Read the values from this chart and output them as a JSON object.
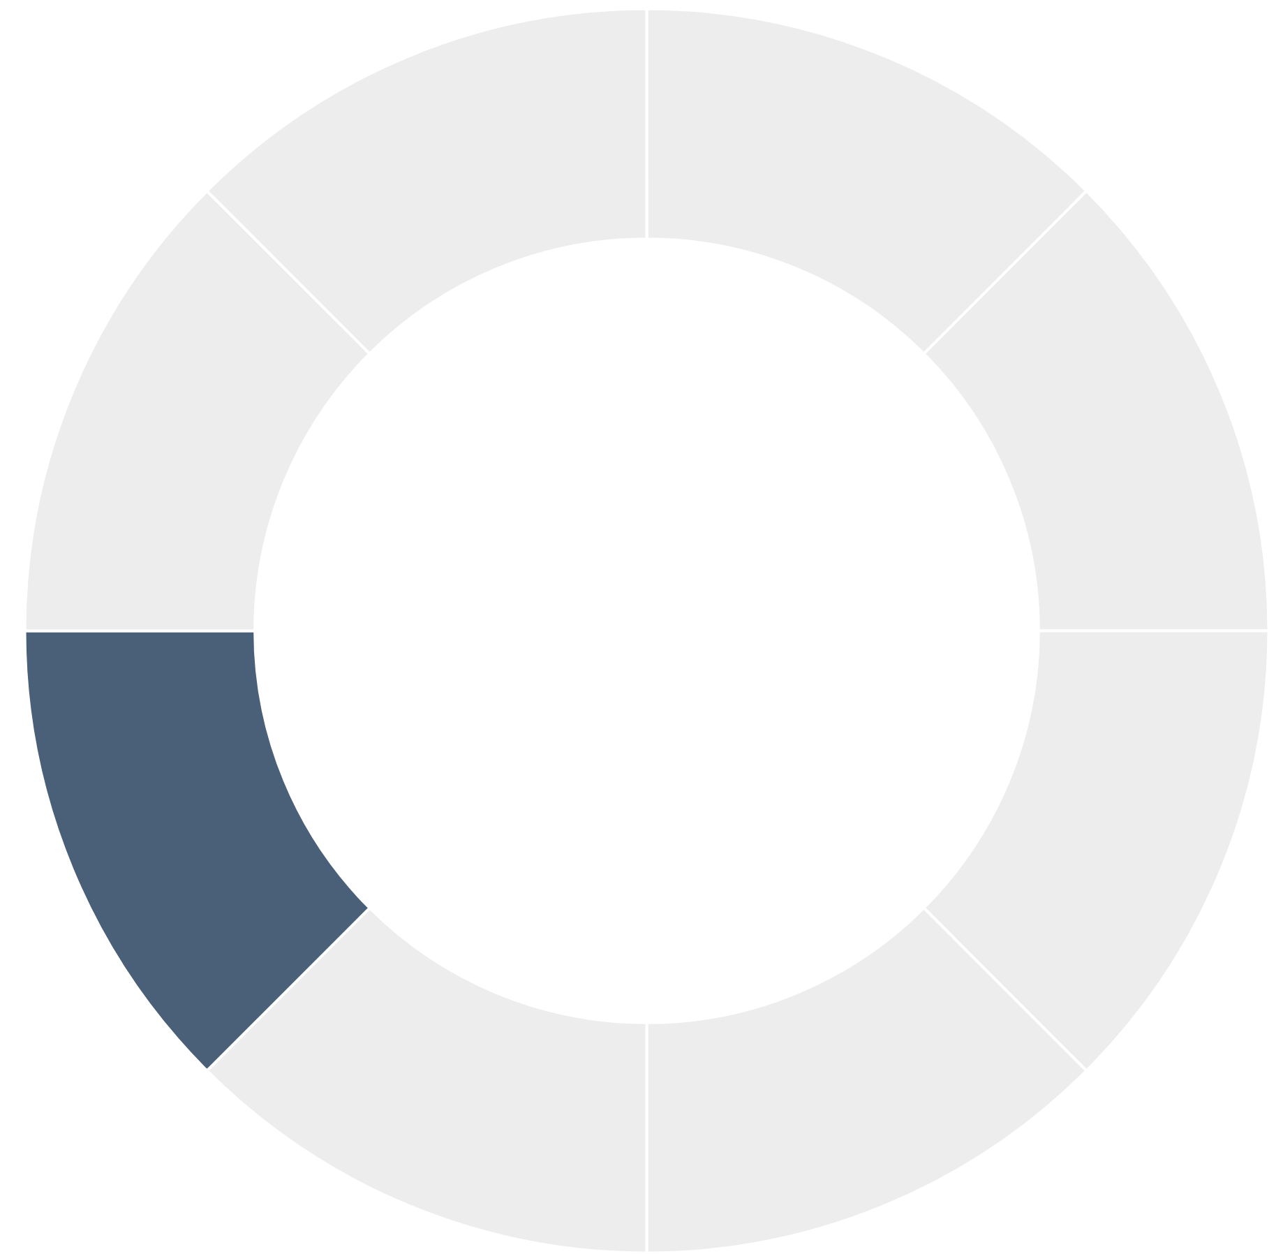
{
  "chart_data": {
    "type": "donut",
    "categories": [
      null,
      null,
      null,
      null,
      null,
      null,
      null,
      null
    ],
    "values": [
      12.5,
      12.5,
      12.5,
      12.5,
      12.5,
      12.5,
      12.5,
      12.5
    ],
    "colors": [
      "#ededed",
      "#ededed",
      "#ededed",
      "#ededed",
      "#ededed",
      "#4a5f78",
      "#ededed",
      "#ededed"
    ]
  }
}
